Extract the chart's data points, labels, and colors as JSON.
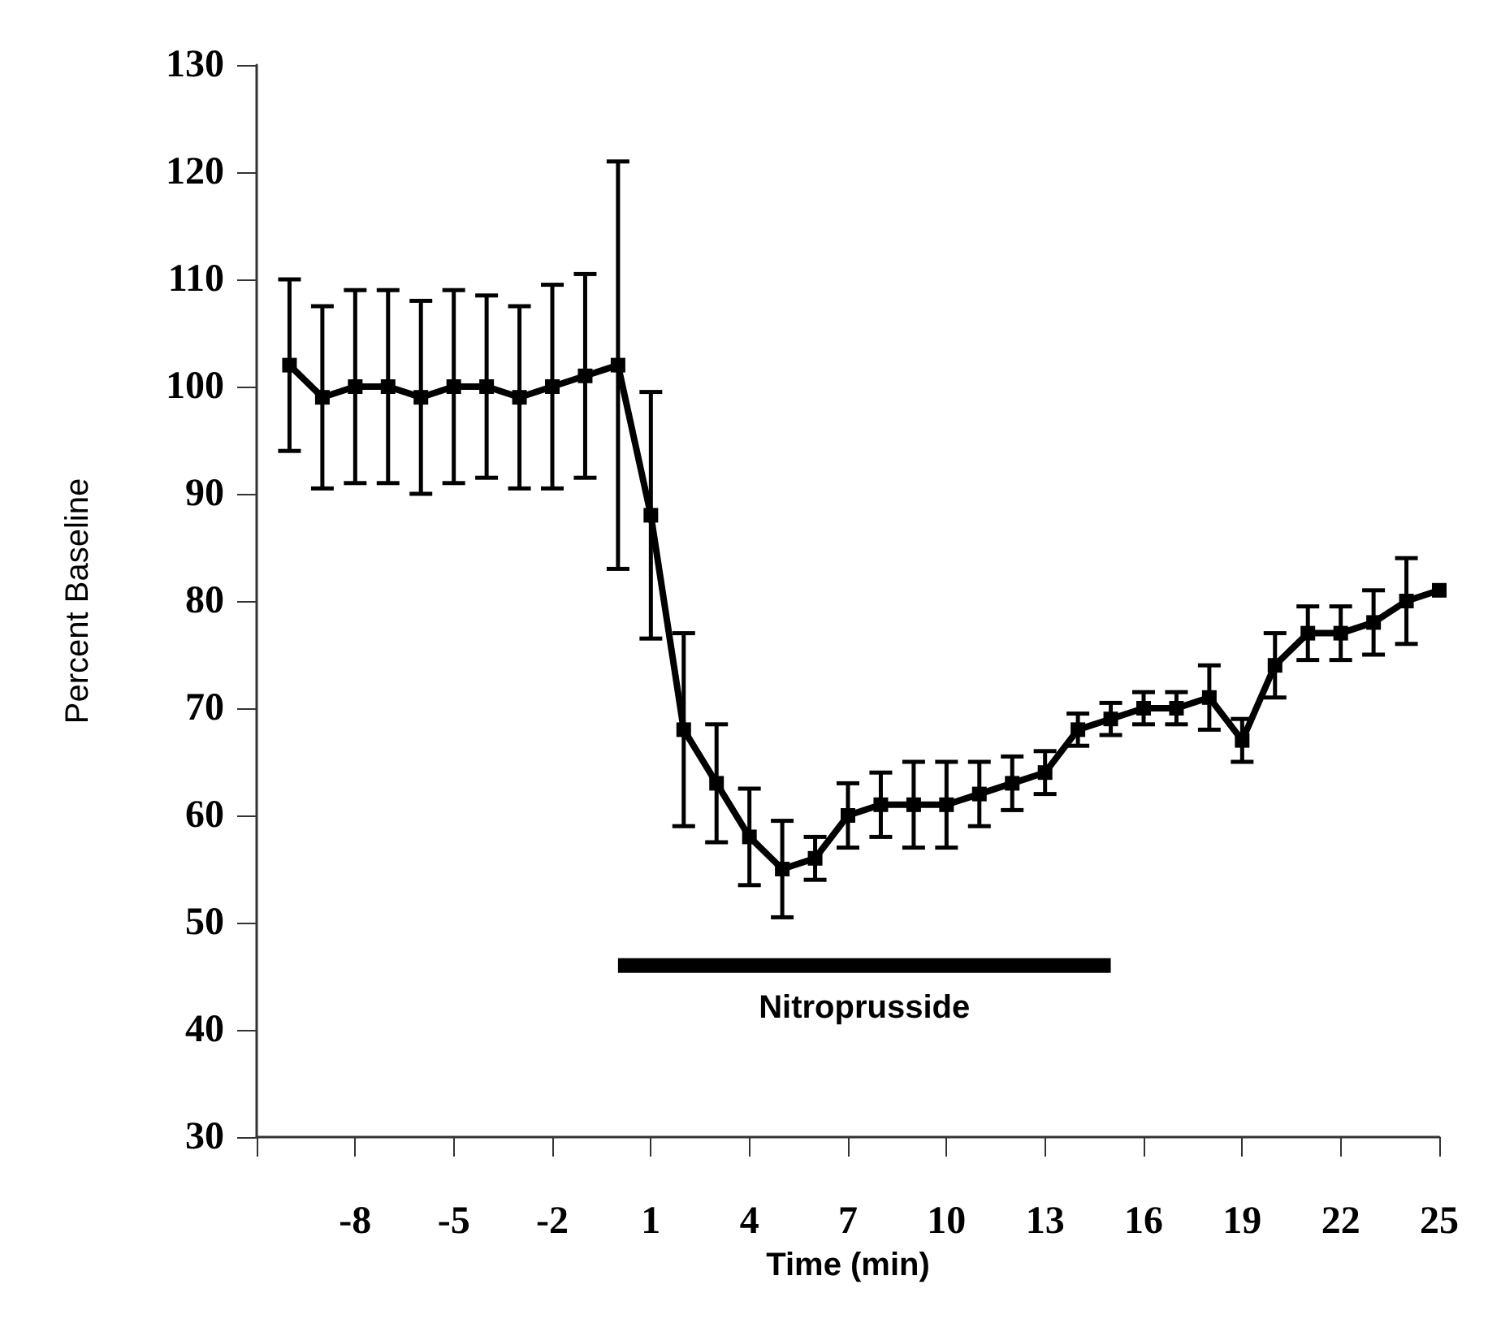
{
  "chart_data": {
    "type": "line",
    "xlabel": "Time (min)",
    "ylabel": "Percent Baseline",
    "x": [
      -10,
      -9,
      -8,
      -7,
      -6,
      -5,
      -4,
      -3,
      -2,
      -1,
      0,
      1,
      2,
      3,
      4,
      5,
      6,
      7,
      8,
      9,
      10,
      11,
      12,
      13,
      14,
      15,
      16,
      17,
      18,
      19,
      20,
      21,
      22,
      23,
      24,
      25
    ],
    "series": [
      {
        "color": "#000000",
        "values": [
          102,
          99,
          100,
          100,
          99,
          100,
          100,
          99,
          100,
          101,
          102,
          88,
          68,
          63,
          58,
          55,
          56,
          60,
          61,
          61,
          61,
          62,
          63,
          64,
          68,
          69,
          70,
          70,
          71,
          67,
          74,
          77,
          77,
          78,
          80,
          81
        ],
        "errors": [
          8,
          8.5,
          9,
          9,
          9,
          9,
          8.5,
          8.5,
          9.5,
          9.5,
          19,
          11.5,
          9,
          5.5,
          4.5,
          4.5,
          2,
          3,
          3,
          4,
          4,
          3,
          2.5,
          2,
          1.5,
          1.5,
          1.5,
          1.5,
          3,
          2,
          3,
          2.5,
          2.5,
          3,
          4,
          null
        ]
      },
      {
        "color": "#000000",
        "x": [
          0,
          15
        ],
        "values": [
          46,
          46
        ],
        "marker": "none"
      }
    ],
    "annotations": [
      "Nitroprusside"
    ],
    "xlim": [
      -11,
      25
    ],
    "xticks": [
      {
        "value": -11,
        "label": null
      },
      -8,
      -5,
      -2,
      1,
      4,
      7,
      10,
      13,
      16,
      19,
      22,
      25
    ],
    "ylim": [
      30,
      130
    ],
    "yticks": [
      30,
      40,
      50,
      60,
      70,
      80,
      90,
      100,
      110,
      120,
      130
    ],
    "grid": false,
    "marker": "square",
    "line_style": "solid"
  }
}
